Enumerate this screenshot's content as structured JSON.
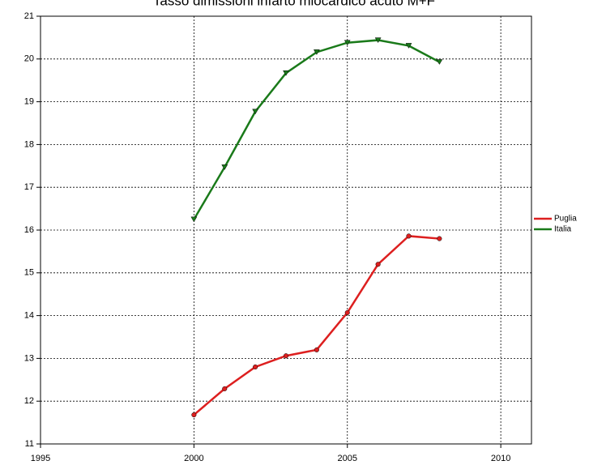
{
  "chart_data": {
    "type": "line",
    "title": "Tasso dimissioni infarto miocardico acuto M+F",
    "x": [
      2000,
      2001,
      2002,
      2003,
      2004,
      2005,
      2006,
      2007,
      2008
    ],
    "series": [
      {
        "name": "Puglia",
        "color": "#dd1f1f",
        "marker": "circle",
        "values": [
          11.68,
          12.29,
          12.8,
          13.06,
          13.2,
          14.07,
          15.2,
          15.86,
          15.8
        ]
      },
      {
        "name": "Italia",
        "color": "#1a7a1a",
        "marker": "triangle-down",
        "values": [
          16.25,
          17.47,
          18.77,
          19.67,
          20.16,
          20.38,
          20.44,
          20.31,
          19.93
        ]
      }
    ],
    "xlim": [
      1995,
      2011
    ],
    "xticks": [
      1995,
      2000,
      2005,
      2010
    ],
    "ylim": [
      11,
      21
    ],
    "yticks": [
      11,
      12,
      13,
      14,
      15,
      16,
      17,
      18,
      19,
      20,
      21
    ],
    "grid": true,
    "legend": "right"
  }
}
